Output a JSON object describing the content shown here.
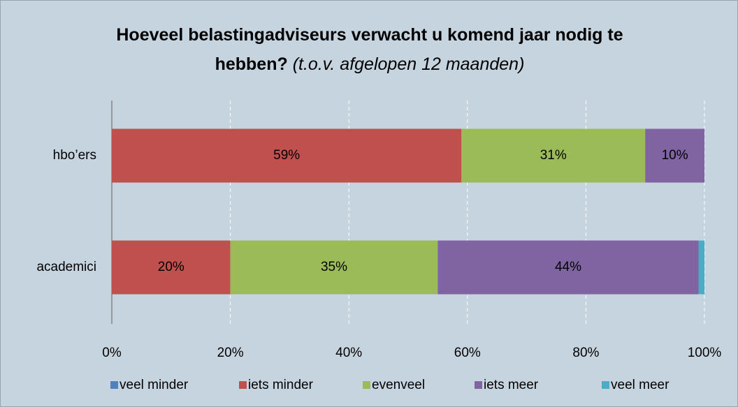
{
  "chart_data": {
    "type": "stacked_bar_horizontal",
    "title": "Hoeveel belastingadviseurs verwacht u komend jaar nodig te hebben?",
    "title_note": "(t.o.v. afgelopen 12 maanden)",
    "categories": [
      "hbo’ers",
      "academici"
    ],
    "series": [
      {
        "name": "veel minder",
        "color": "#4f81bd",
        "values": [
          0,
          0
        ]
      },
      {
        "name": "iets minder",
        "color": "#c0504d",
        "values": [
          59,
          20
        ],
        "value_labels": [
          "59%",
          "20%"
        ]
      },
      {
        "name": "evenveel",
        "color": "#9bbb59",
        "values": [
          31,
          35
        ],
        "value_labels": [
          "31%",
          "35%"
        ]
      },
      {
        "name": "iets meer",
        "color": "#8064a2",
        "values": [
          10,
          44
        ],
        "value_labels": [
          "10%",
          "44%"
        ]
      },
      {
        "name": "veel meer",
        "color": "#4bacc6",
        "values": [
          0,
          1
        ]
      }
    ],
    "xlim": [
      0,
      100
    ],
    "xticks": [
      {
        "value": 0,
        "label": "0%"
      },
      {
        "value": 20,
        "label": "20%"
      },
      {
        "value": 40,
        "label": "40%"
      },
      {
        "value": 60,
        "label": "60%"
      },
      {
        "value": 80,
        "label": "80%"
      },
      {
        "value": 100,
        "label": "100%"
      }
    ],
    "grid": true,
    "legend": "bottom"
  }
}
